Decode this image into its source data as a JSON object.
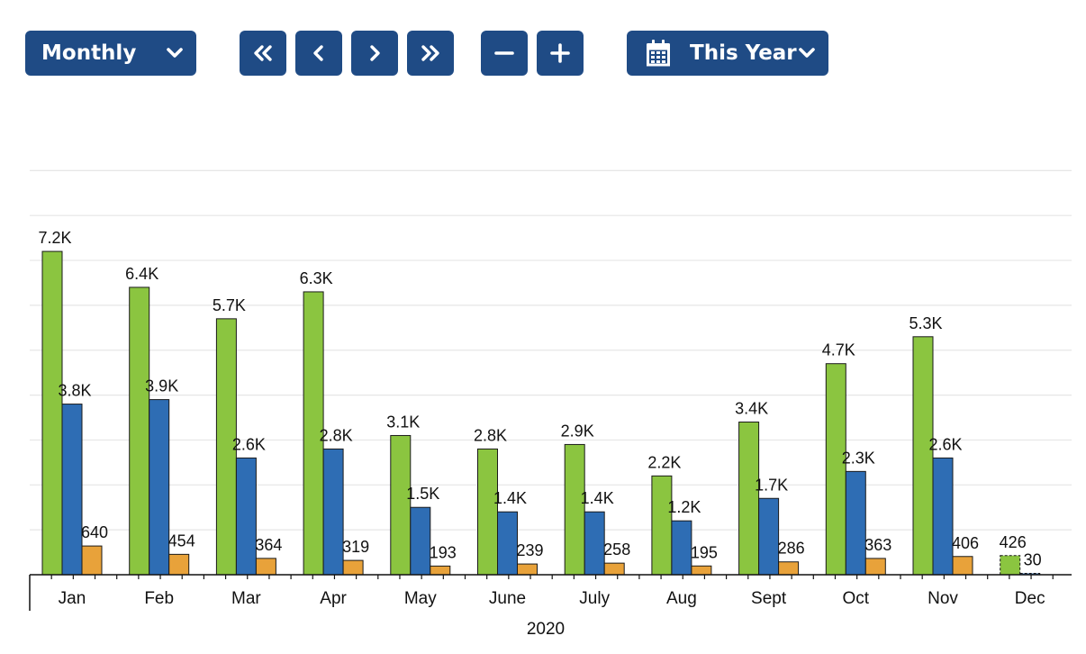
{
  "toolbar": {
    "period_select": {
      "label": "Monthly",
      "icon": "chevron-down-icon"
    },
    "nav_buttons": [
      {
        "icon": "double-chevron-left-icon"
      },
      {
        "icon": "chevron-left-icon"
      },
      {
        "icon": "chevron-right-icon"
      },
      {
        "icon": "double-chevron-right-icon"
      }
    ],
    "zoom_buttons": [
      {
        "icon": "minus-icon"
      },
      {
        "icon": "plus-icon"
      }
    ],
    "range_select": {
      "label": "This Year",
      "icon": "calendar-icon",
      "chevron": "chevron-down-icon"
    },
    "button_color": "#1f4b85"
  },
  "chart_data": {
    "type": "bar",
    "xlabel": "2020",
    "ylabel": "",
    "categories": [
      "Jan",
      "Feb",
      "Mar",
      "Apr",
      "May",
      "June",
      "July",
      "Aug",
      "Sept",
      "Oct",
      "Nov",
      "Dec"
    ],
    "series": [
      {
        "color": "#8bc540",
        "values": [
          7200,
          6400,
          5700,
          6300,
          3100,
          2800,
          2900,
          2200,
          3400,
          4700,
          5300,
          426
        ],
        "labels": [
          "7.2K",
          "6.4K",
          "5.7K",
          "6.3K",
          "3.1K",
          "2.8K",
          "2.9K",
          "2.2K",
          "3.4K",
          "4.7K",
          "5.3K",
          "426"
        ]
      },
      {
        "color": "#2e6db4",
        "values": [
          3800,
          3900,
          2600,
          2800,
          1500,
          1400,
          1400,
          1200,
          1700,
          2300,
          2600,
          30
        ],
        "labels": [
          "3.8K",
          "3.9K",
          "2.6K",
          "2.8K",
          "1.5K",
          "1.4K",
          "1.4K",
          "1.2K",
          "1.7K",
          "2.3K",
          "2.6K",
          "30"
        ]
      },
      {
        "color": "#e8a23a",
        "values": [
          640,
          454,
          364,
          319,
          193,
          239,
          258,
          195,
          286,
          363,
          406,
          0
        ],
        "labels": [
          "640",
          "454",
          "364",
          "319",
          "193",
          "239",
          "258",
          "195",
          "286",
          "363",
          "406",
          ""
        ]
      }
    ],
    "partial_categories": [
      "Dec"
    ],
    "ylim": [
      0,
      9000
    ],
    "grid": true,
    "legend": "none"
  }
}
